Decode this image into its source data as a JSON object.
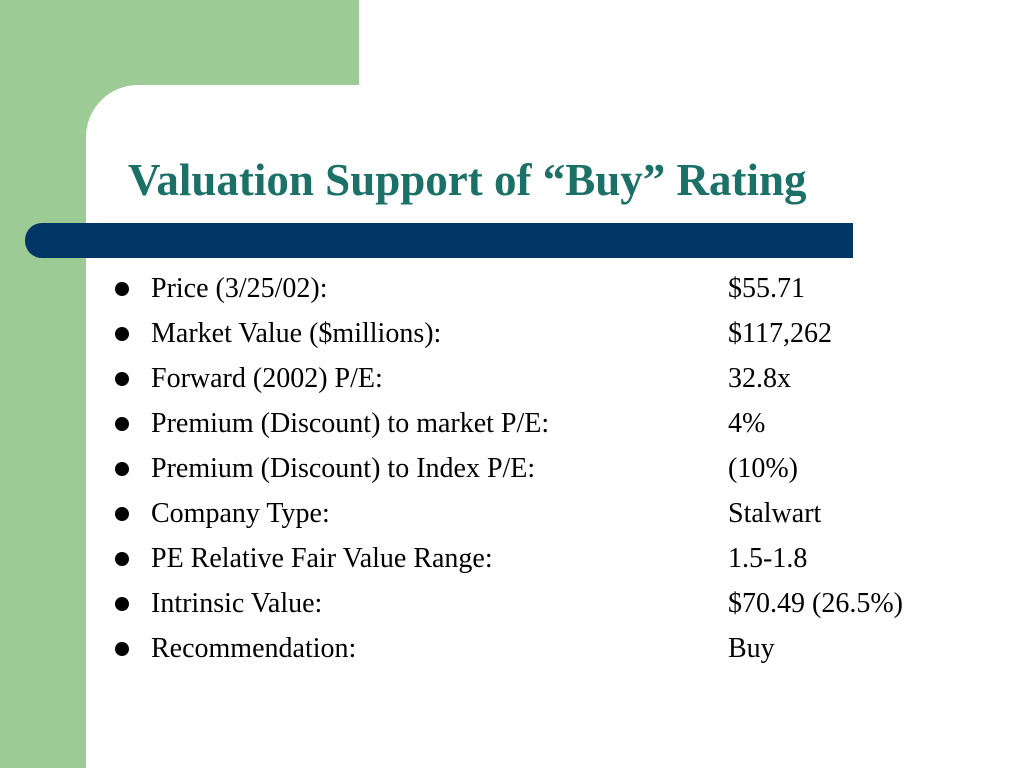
{
  "slide": {
    "title": "Valuation Support of “Buy” Rating",
    "colors": {
      "title": "#1b7167",
      "green_block": "#9dcb95",
      "rule_bar": "#003566",
      "text": "#000000",
      "background": "#ffffff"
    },
    "rows": [
      {
        "label": "Price (3/25/02):",
        "value": "$55.71"
      },
      {
        "label": "Market Value ($millions):",
        "value": "$117,262"
      },
      {
        "label": "Forward (2002) P/E:",
        "value": "32.8x"
      },
      {
        "label": "Premium (Discount) to market P/E:",
        "value": "4%"
      },
      {
        "label": "Premium (Discount) to Index P/E:",
        "value": "(10%)"
      },
      {
        "label": "Company Type:",
        "value": "Stalwart"
      },
      {
        "label": "PE Relative Fair Value Range:",
        "value": "1.5-1.8"
      },
      {
        "label": "Intrinsic Value:",
        "value": "$70.49 (26.5%)"
      },
      {
        "label": "Recommendation:",
        "value": "Buy"
      }
    ]
  }
}
